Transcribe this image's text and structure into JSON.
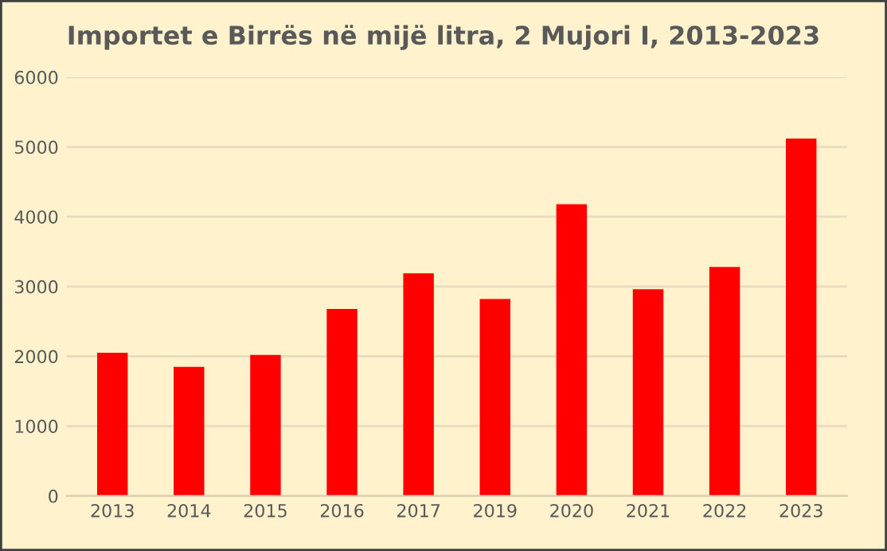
{
  "chart_data": {
    "type": "bar",
    "title": "Importet e Birrës në mijë litra, 2 Mujori I, 2013-2023",
    "categories": [
      "2013",
      "2014",
      "2015",
      "2016",
      "2017",
      "2019",
      "2020",
      "2021",
      "2022",
      "2023"
    ],
    "values": [
      2050,
      1850,
      2020,
      2680,
      3190,
      2820,
      4180,
      2960,
      3280,
      5120
    ],
    "color": "#ff0000",
    "ylim": [
      0,
      6000
    ],
    "yticks": [
      0,
      1000,
      2000,
      3000,
      4000,
      5000,
      6000
    ],
    "grid": "y"
  }
}
